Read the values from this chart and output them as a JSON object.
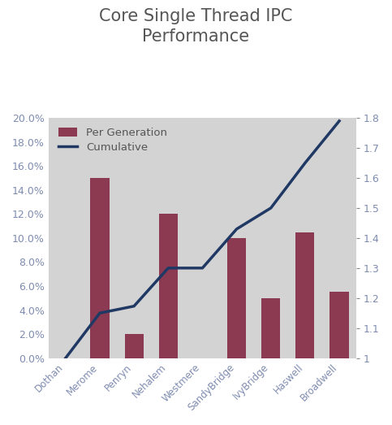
{
  "title": "Core Single Thread IPC\nPerformance",
  "categories": [
    "Dothan",
    "Merome",
    "Penryn",
    "Nehalem",
    "Westmere",
    "SandyBridge",
    "IvyBridge",
    "Haswell",
    "Broadwell"
  ],
  "bar_values": [
    0.0,
    0.15,
    0.02,
    0.12,
    0.0,
    0.1,
    0.05,
    0.105,
    0.055
  ],
  "line_values": [
    1.0,
    1.15,
    1.173,
    1.3,
    1.3,
    1.43,
    1.5,
    1.65,
    1.79
  ],
  "bar_color": "#8B3A52",
  "line_color": "#1F3864",
  "background_color": "#D3D3D3",
  "fig_background": "#FFFFFF",
  "left_ylim": [
    0.0,
    0.2
  ],
  "right_ylim": [
    1.0,
    1.8
  ],
  "left_yticks": [
    0.0,
    0.02,
    0.04,
    0.06,
    0.08,
    0.1,
    0.12,
    0.14,
    0.16,
    0.18,
    0.2
  ],
  "right_yticks": [
    1.0,
    1.1,
    1.2,
    1.3,
    1.4,
    1.5,
    1.6,
    1.7,
    1.8
  ],
  "tick_label_color": "#7F8CB0",
  "title_color": "#555555",
  "legend_labels": [
    "Per Generation",
    "Cumulative"
  ],
  "legend_text_color": "#555555",
  "line_width": 2.5,
  "bar_width": 0.55,
  "title_fontsize": 15
}
